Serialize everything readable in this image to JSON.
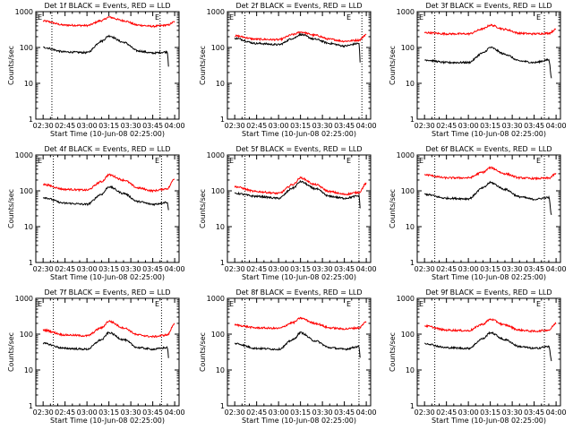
{
  "chart_data": [
    {
      "type": "line",
      "title": "Det 1f BLACK = Events, RED = LLD",
      "xlabel": "Start Time (10-Jun-08 02:25:00)",
      "ylabel": "Counts/sec",
      "yscale": "log",
      "ylim": [
        1,
        1000
      ],
      "xlim": [
        "02:25",
        "04:03"
      ],
      "xticks": [
        "02:30",
        "02:45",
        "03:00",
        "03:15",
        "03:30",
        "03:45",
        "04:00"
      ],
      "yticks": [
        "1",
        "10",
        "100",
        "1000"
      ],
      "corner_labels": [
        "E",
        "E"
      ],
      "vlines": [
        "02:36",
        "03:50"
      ],
      "series": [
        {
          "color": "#ff0000",
          "x": [
            "02:30",
            "02:45",
            "03:00",
            "03:10",
            "03:15",
            "03:25",
            "03:35",
            "03:45",
            "03:55",
            "04:00"
          ],
          "y": [
            550,
            420,
            410,
            560,
            700,
            560,
            420,
            390,
            420,
            520
          ]
        },
        {
          "color": "#000000",
          "x": [
            "02:30",
            "02:45",
            "03:00",
            "03:10",
            "03:15",
            "03:25",
            "03:35",
            "03:45",
            "03:55",
            "03:56"
          ],
          "y": [
            100,
            75,
            72,
            150,
            210,
            140,
            80,
            70,
            75,
            25
          ]
        }
      ]
    },
    {
      "type": "line",
      "title": "Det 2f BLACK = Events, RED = LLD",
      "xlabel": "Start Time (10-Jun-08 02:25:00)",
      "ylabel": "Counts/sec",
      "yscale": "log",
      "ylim": [
        1,
        1000
      ],
      "xlim": [
        "02:25",
        "04:03"
      ],
      "xticks": [
        "02:30",
        "02:45",
        "03:00",
        "03:15",
        "03:30",
        "03:45",
        "04:00"
      ],
      "yticks": [
        "1",
        "10",
        "100",
        "1000"
      ],
      "corner_labels": [
        "E",
        "E"
      ],
      "vlines": [
        "02:37",
        "03:57"
      ],
      "series": [
        {
          "color": "#ff0000",
          "x": [
            "02:30",
            "02:45",
            "03:00",
            "03:10",
            "03:15",
            "03:25",
            "03:35",
            "03:45",
            "03:55",
            "04:00"
          ],
          "y": [
            210,
            170,
            165,
            230,
            270,
            220,
            170,
            150,
            160,
            230
          ]
        },
        {
          "color": "#000000",
          "x": [
            "02:30",
            "02:45",
            "03:00",
            "03:10",
            "03:15",
            "03:25",
            "03:35",
            "03:45",
            "03:55",
            "03:56"
          ],
          "y": [
            180,
            130,
            120,
            180,
            230,
            170,
            130,
            110,
            130,
            30
          ]
        }
      ]
    },
    {
      "type": "line",
      "title": "Det 3f BLACK = Events, RED = LLD",
      "xlabel": "Start Time (10-Jun-08 02:25:00)",
      "ylabel": "Counts/sec",
      "yscale": "log",
      "ylim": [
        1,
        1000
      ],
      "xlim": [
        "02:25",
        "04:03"
      ],
      "xticks": [
        "02:30",
        "02:45",
        "03:00",
        "03:15",
        "03:30",
        "03:45",
        "04:00"
      ],
      "yticks": [
        "1",
        "10",
        "100",
        "1000"
      ],
      "corner_labels": [
        "E",
        "E"
      ],
      "vlines": [
        "02:37",
        "03:52"
      ],
      "series": [
        {
          "color": "#ff0000",
          "x": [
            "02:30",
            "02:45",
            "03:00",
            "03:10",
            "03:15",
            "03:25",
            "03:35",
            "03:45",
            "03:55",
            "04:00"
          ],
          "y": [
            260,
            240,
            240,
            330,
            420,
            320,
            250,
            240,
            250,
            320
          ]
        },
        {
          "color": "#000000",
          "x": [
            "02:30",
            "02:45",
            "03:00",
            "03:10",
            "03:15",
            "03:25",
            "03:35",
            "03:45",
            "03:55",
            "03:57"
          ],
          "y": [
            45,
            38,
            38,
            70,
            100,
            65,
            42,
            38,
            45,
            14
          ]
        }
      ]
    },
    {
      "type": "line",
      "title": "Det 4f BLACK = Events, RED = LLD",
      "xlabel": "Start Time (10-Jun-08 02:25:00)",
      "ylabel": "Counts/sec",
      "yscale": "log",
      "ylim": [
        1,
        1000
      ],
      "xlim": [
        "02:25",
        "04:03"
      ],
      "xticks": [
        "02:30",
        "02:45",
        "03:00",
        "03:15",
        "03:30",
        "03:45",
        "04:00"
      ],
      "yticks": [
        "1",
        "10",
        "100",
        "1000"
      ],
      "corner_labels": [
        "E",
        "E"
      ],
      "vlines": [
        "02:37",
        "03:51"
      ],
      "series": [
        {
          "color": "#ff0000",
          "x": [
            "02:30",
            "02:45",
            "03:00",
            "03:10",
            "03:15",
            "03:25",
            "03:35",
            "03:45",
            "03:55",
            "04:00"
          ],
          "y": [
            150,
            110,
            105,
            180,
            280,
            200,
            120,
            100,
            115,
            220
          ]
        },
        {
          "color": "#000000",
          "x": [
            "02:30",
            "02:45",
            "03:00",
            "03:10",
            "03:15",
            "03:25",
            "03:35",
            "03:45",
            "03:55",
            "03:56"
          ],
          "y": [
            65,
            45,
            42,
            80,
            130,
            85,
            50,
            42,
            48,
            25
          ]
        }
      ]
    },
    {
      "type": "line",
      "title": "Det 5f BLACK = Events, RED = LLD",
      "xlabel": "Start Time (10-Jun-08 02:25:00)",
      "ylabel": "Counts/sec",
      "yscale": "log",
      "ylim": [
        1,
        1000
      ],
      "xlim": [
        "02:25",
        "04:03"
      ],
      "xticks": [
        "02:30",
        "02:45",
        "03:00",
        "03:15",
        "03:30",
        "03:45",
        "04:00"
      ],
      "yticks": [
        "1",
        "10",
        "100",
        "1000"
      ],
      "corner_labels": [
        "E",
        "E"
      ],
      "vlines": [
        "02:37",
        "03:55"
      ],
      "series": [
        {
          "color": "#ff0000",
          "x": [
            "02:30",
            "02:45",
            "03:00",
            "03:10",
            "03:15",
            "03:25",
            "03:35",
            "03:45",
            "03:55",
            "04:00"
          ],
          "y": [
            130,
            95,
            85,
            150,
            230,
            150,
            95,
            80,
            90,
            160
          ]
        },
        {
          "color": "#000000",
          "x": [
            "02:30",
            "02:45",
            "03:00",
            "03:10",
            "03:15",
            "03:25",
            "03:35",
            "03:45",
            "03:55",
            "03:56"
          ],
          "y": [
            85,
            70,
            62,
            120,
            180,
            115,
            70,
            62,
            72,
            30
          ]
        }
      ]
    },
    {
      "type": "line",
      "title": "Det 6f BLACK = Events, RED = LLD",
      "xlabel": "Start Time (10-Jun-08 02:25:00)",
      "ylabel": "Counts/sec",
      "yscale": "log",
      "ylim": [
        1,
        1000
      ],
      "xlim": [
        "02:25",
        "04:03"
      ],
      "xticks": [
        "02:30",
        "02:45",
        "03:00",
        "03:15",
        "03:30",
        "03:45",
        "04:00"
      ],
      "yticks": [
        "1",
        "10",
        "100",
        "1000"
      ],
      "corner_labels": [
        "E",
        "E"
      ],
      "vlines": [
        "02:37",
        "03:52"
      ],
      "series": [
        {
          "color": "#ff0000",
          "x": [
            "02:30",
            "02:45",
            "03:00",
            "03:10",
            "03:15",
            "03:25",
            "03:35",
            "03:45",
            "03:55",
            "04:00"
          ],
          "y": [
            280,
            230,
            230,
            330,
            440,
            300,
            230,
            220,
            225,
            300
          ]
        },
        {
          "color": "#000000",
          "x": [
            "02:30",
            "02:45",
            "03:00",
            "03:10",
            "03:15",
            "03:25",
            "03:35",
            "03:45",
            "03:55",
            "03:57"
          ],
          "y": [
            80,
            62,
            60,
            120,
            170,
            110,
            68,
            58,
            65,
            20
          ]
        }
      ]
    },
    {
      "type": "line",
      "title": "Det 7f BLACK = Events, RED = LLD",
      "xlabel": "Start Time (10-Jun-08 02:25:00)",
      "ylabel": "Counts/sec",
      "yscale": "log",
      "ylim": [
        1,
        1000
      ],
      "xlim": [
        "02:25",
        "04:03"
      ],
      "xticks": [
        "02:30",
        "02:45",
        "03:00",
        "03:15",
        "03:30",
        "03:45",
        "04:00"
      ],
      "yticks": [
        "1",
        "10",
        "100",
        "1000"
      ],
      "corner_labels": [
        "E",
        "E"
      ],
      "vlines": [
        "02:37",
        "03:51"
      ],
      "series": [
        {
          "color": "#ff0000",
          "x": [
            "02:30",
            "02:45",
            "03:00",
            "03:10",
            "03:15",
            "03:25",
            "03:35",
            "03:45",
            "03:55",
            "04:00"
          ],
          "y": [
            130,
            95,
            90,
            150,
            230,
            150,
            95,
            85,
            95,
            200
          ]
        },
        {
          "color": "#000000",
          "x": [
            "02:30",
            "02:45",
            "03:00",
            "03:10",
            "03:15",
            "03:25",
            "03:35",
            "03:45",
            "03:55",
            "03:56"
          ],
          "y": [
            55,
            40,
            38,
            70,
            110,
            70,
            42,
            38,
            42,
            20
          ]
        }
      ]
    },
    {
      "type": "line",
      "title": "Det 8f BLACK = Events, RED = LLD",
      "xlabel": "Start Time (10-Jun-08 02:25:00)",
      "ylabel": "Counts/sec",
      "yscale": "log",
      "ylim": [
        1,
        1000
      ],
      "xlim": [
        "02:25",
        "04:03"
      ],
      "xticks": [
        "02:30",
        "02:45",
        "03:00",
        "03:15",
        "03:30",
        "03:45",
        "04:00"
      ],
      "yticks": [
        "1",
        "10",
        "100",
        "1000"
      ],
      "corner_labels": [
        "E",
        "E"
      ],
      "vlines": [
        "02:37",
        "03:55"
      ],
      "series": [
        {
          "color": "#ff0000",
          "x": [
            "02:30",
            "02:45",
            "03:00",
            "03:10",
            "03:15",
            "03:25",
            "03:35",
            "03:45",
            "03:55",
            "04:00"
          ],
          "y": [
            180,
            150,
            145,
            210,
            280,
            200,
            150,
            140,
            150,
            220
          ]
        },
        {
          "color": "#000000",
          "x": [
            "02:30",
            "02:45",
            "03:00",
            "03:10",
            "03:15",
            "03:25",
            "03:35",
            "03:45",
            "03:55",
            "03:56"
          ],
          "y": [
            55,
            40,
            38,
            70,
            110,
            65,
            42,
            38,
            45,
            20
          ]
        }
      ]
    },
    {
      "type": "line",
      "title": "Det 9f BLACK = Events, RED = LLD",
      "xlabel": "Start Time (10-Jun-08 02:25:00)",
      "ylabel": "Counts/sec",
      "yscale": "log",
      "ylim": [
        1,
        1000
      ],
      "xlim": [
        "02:25",
        "04:03"
      ],
      "xticks": [
        "02:30",
        "02:45",
        "03:00",
        "03:15",
        "03:30",
        "03:45",
        "04:00"
      ],
      "yticks": [
        "1",
        "10",
        "100",
        "1000"
      ],
      "corner_labels": [
        "E",
        "E"
      ],
      "vlines": [
        "02:37",
        "03:52"
      ],
      "series": [
        {
          "color": "#ff0000",
          "x": [
            "02:30",
            "02:45",
            "03:00",
            "03:10",
            "03:15",
            "03:25",
            "03:35",
            "03:45",
            "03:55",
            "04:00"
          ],
          "y": [
            170,
            130,
            125,
            190,
            260,
            180,
            130,
            120,
            130,
            200
          ]
        },
        {
          "color": "#000000",
          "x": [
            "02:30",
            "02:45",
            "03:00",
            "03:10",
            "03:15",
            "03:25",
            "03:35",
            "03:45",
            "03:55",
            "03:57"
          ],
          "y": [
            55,
            42,
            40,
            75,
            110,
            70,
            45,
            40,
            45,
            18
          ]
        }
      ]
    }
  ]
}
